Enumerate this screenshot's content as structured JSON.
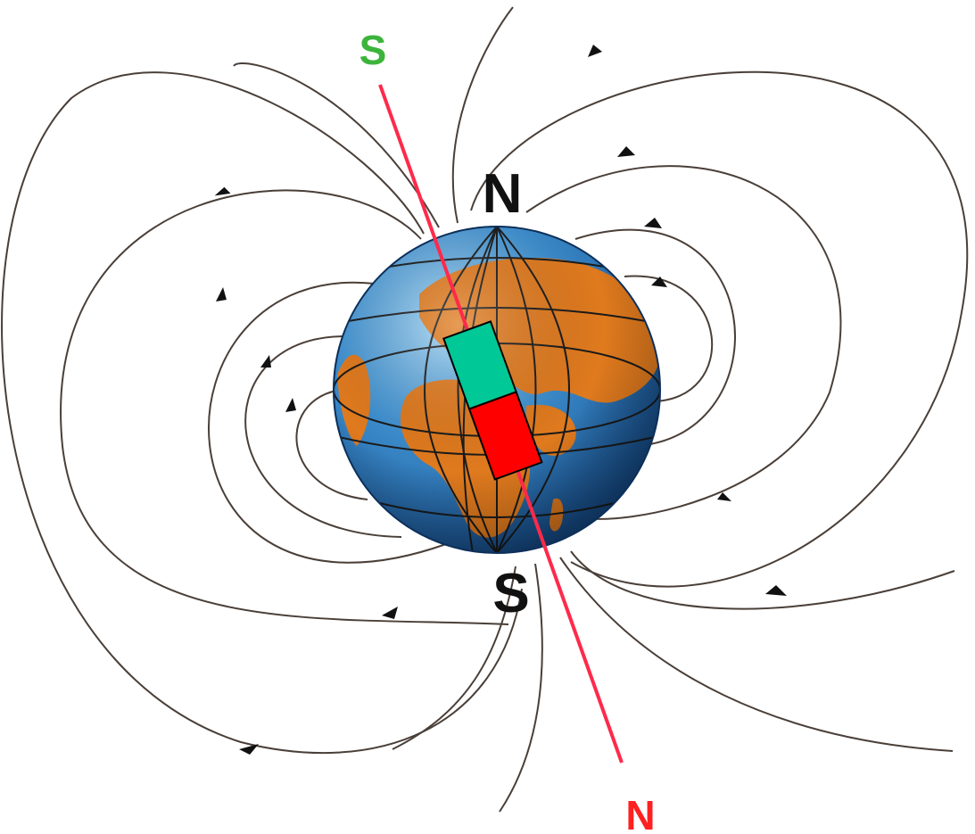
{
  "labels": {
    "geo_north": "N",
    "geo_south": "S",
    "mag_axis_top": "S",
    "mag_axis_bottom": "N"
  },
  "colors": {
    "field_line": "#4a3f38",
    "axis_line": "#ff2a4a",
    "magnet_south": "#00c896",
    "magnet_north": "#ff0000",
    "ocean": "#2f7fc0",
    "land": "#e07a1e",
    "grid": "#1a1a1a",
    "label_black": "#111111",
    "label_green": "#3cb43c",
    "label_red": "#ff2020"
  },
  "icons": {
    "globe": "earth-globe-icon",
    "magnet": "bar-magnet-icon"
  }
}
